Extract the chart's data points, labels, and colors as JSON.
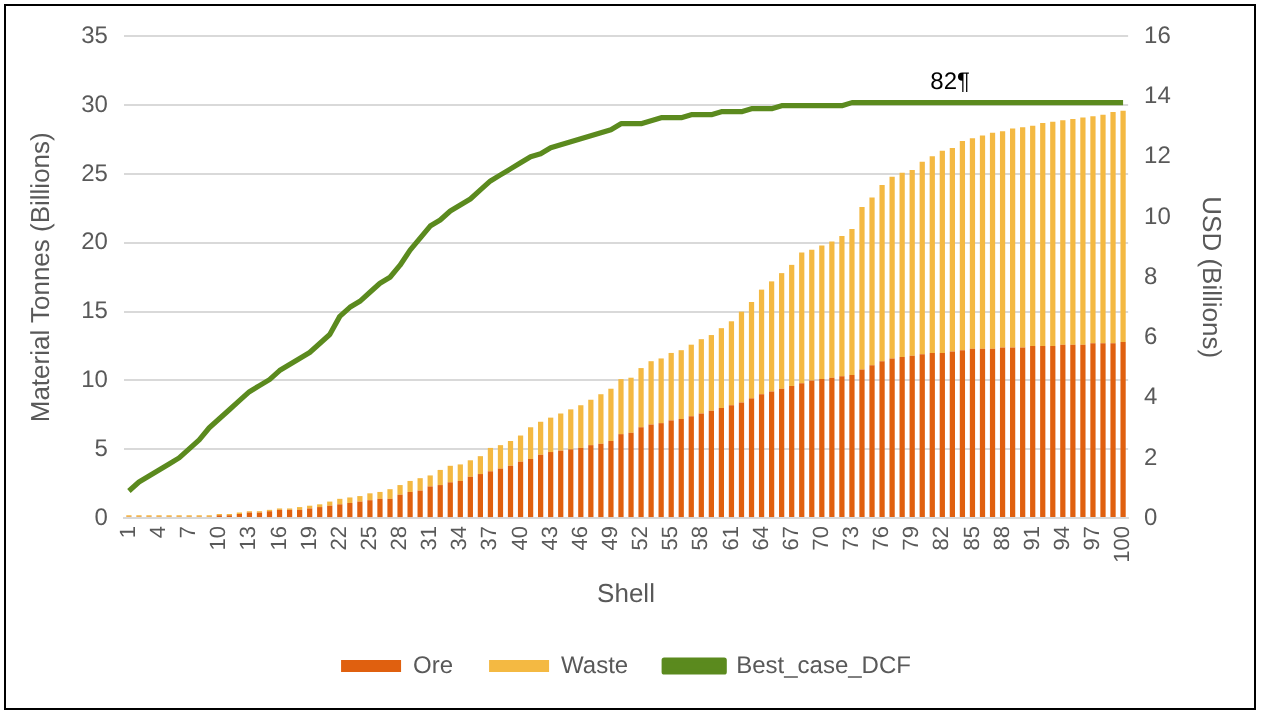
{
  "chart_data": {
    "type": "bar",
    "stacked": true,
    "xlabel": "Shell",
    "ylabel": "Material Tonnes (Billions)",
    "y2label": "USD (Billions)",
    "categories": [
      "1",
      null,
      null,
      "4",
      null,
      null,
      "7",
      null,
      null,
      "10",
      null,
      null,
      "13",
      null,
      null,
      "16",
      null,
      null,
      "19",
      null,
      null,
      "22",
      null,
      null,
      "25",
      null,
      null,
      "28",
      null,
      null,
      "31",
      null,
      null,
      "34",
      null,
      null,
      "37",
      null,
      null,
      "40",
      null,
      null,
      "43",
      null,
      null,
      "46",
      null,
      null,
      "49",
      null,
      null,
      "52",
      null,
      null,
      "55",
      null,
      null,
      "58",
      null,
      null,
      "61",
      null,
      null,
      "64",
      null,
      null,
      "67",
      null,
      null,
      "70",
      null,
      null,
      "73",
      null,
      null,
      "76",
      null,
      null,
      "79",
      null,
      null,
      "82",
      null,
      null,
      "85",
      null,
      null,
      "88",
      null,
      null,
      "91",
      null,
      null,
      "94",
      null,
      null,
      "97",
      null,
      null,
      "100"
    ],
    "series": [
      {
        "name": "Ore",
        "color": "#e0600f",
        "values": [
          0.1,
          0.1,
          0.1,
          0.1,
          0.1,
          0.1,
          0.1,
          0.1,
          0.1,
          0.2,
          0.2,
          0.3,
          0.4,
          0.4,
          0.5,
          0.6,
          0.6,
          0.6,
          0.7,
          0.8,
          0.9,
          1.0,
          1.1,
          1.2,
          1.3,
          1.4,
          1.4,
          1.7,
          1.9,
          2.0,
          2.3,
          2.4,
          2.6,
          2.7,
          3.0,
          3.2,
          3.4,
          3.6,
          3.8,
          4.1,
          4.3,
          4.6,
          4.8,
          4.9,
          5.0,
          5.1,
          5.3,
          5.4,
          5.6,
          6.1,
          6.2,
          6.6,
          6.8,
          6.9,
          7.1,
          7.2,
          7.4,
          7.6,
          7.8,
          8.0,
          8.2,
          8.4,
          8.7,
          9.0,
          9.2,
          9.4,
          9.6,
          9.8,
          10.0,
          10.1,
          10.2,
          10.3,
          10.4,
          10.8,
          11.1,
          11.4,
          11.6,
          11.7,
          11.8,
          11.9,
          12.0,
          12.0,
          12.1,
          12.2,
          12.3,
          12.3,
          12.3,
          12.4,
          12.4,
          12.4,
          12.5,
          12.5,
          12.5,
          12.6,
          12.6,
          12.6,
          12.7,
          12.7,
          12.7,
          12.8
        ]
      },
      {
        "name": "Waste",
        "color": "#f4b942",
        "values": [
          0.1,
          0.1,
          0.1,
          0.1,
          0.1,
          0.1,
          0.1,
          0.1,
          0.1,
          0.1,
          0.1,
          0.1,
          0.1,
          0.1,
          0.1,
          0.1,
          0.1,
          0.2,
          0.2,
          0.2,
          0.3,
          0.4,
          0.4,
          0.4,
          0.5,
          0.5,
          0.7,
          0.7,
          0.8,
          0.9,
          0.8,
          1.1,
          1.2,
          1.2,
          1.2,
          1.3,
          1.7,
          1.7,
          1.8,
          1.9,
          2.3,
          2.4,
          2.5,
          2.7,
          2.9,
          3.1,
          3.3,
          3.6,
          3.8,
          4.0,
          4.0,
          4.3,
          4.6,
          4.7,
          4.9,
          5.0,
          5.2,
          5.4,
          5.5,
          5.8,
          6.1,
          6.6,
          7.0,
          7.6,
          8.0,
          8.4,
          8.8,
          9.5,
          9.5,
          9.7,
          9.9,
          10.2,
          10.6,
          11.8,
          12.2,
          12.8,
          13.2,
          13.4,
          13.5,
          14.0,
          14.3,
          14.7,
          14.8,
          15.2,
          15.3,
          15.5,
          15.7,
          15.7,
          15.9,
          16.0,
          16.0,
          16.2,
          16.3,
          16.3,
          16.4,
          16.5,
          16.5,
          16.6,
          16.8,
          16.8
        ]
      },
      {
        "name": "Best_case_DCF",
        "type": "line",
        "axis": "y2",
        "color": "#5b8a1e",
        "values": [
          0.9,
          1.2,
          1.4,
          1.6,
          1.8,
          2.0,
          2.3,
          2.6,
          3.0,
          3.3,
          3.6,
          3.9,
          4.2,
          4.4,
          4.6,
          4.9,
          5.1,
          5.3,
          5.5,
          5.8,
          6.1,
          6.7,
          7.0,
          7.2,
          7.5,
          7.8,
          8.0,
          8.4,
          8.9,
          9.3,
          9.7,
          9.9,
          10.2,
          10.4,
          10.6,
          10.9,
          11.2,
          11.4,
          11.6,
          11.8,
          12.0,
          12.1,
          12.3,
          12.4,
          12.5,
          12.6,
          12.7,
          12.8,
          12.9,
          13.1,
          13.1,
          13.1,
          13.2,
          13.3,
          13.3,
          13.3,
          13.4,
          13.4,
          13.4,
          13.5,
          13.5,
          13.5,
          13.6,
          13.6,
          13.6,
          13.7,
          13.7,
          13.7,
          13.7,
          13.7,
          13.7,
          13.7,
          13.8,
          13.8,
          13.8,
          13.8,
          13.8,
          13.8,
          13.8,
          13.8,
          13.8,
          13.8,
          13.8,
          13.8,
          13.8,
          13.8,
          13.8,
          13.8,
          13.8,
          13.8,
          13.8,
          13.8,
          13.8,
          13.8,
          13.8,
          13.8,
          13.8,
          13.8,
          13.8,
          13.8
        ]
      }
    ],
    "ylim": [
      0,
      35
    ],
    "yticks": [
      0,
      5,
      10,
      15,
      20,
      25,
      30,
      35
    ],
    "y2lim": [
      0,
      16
    ],
    "y2ticks": [
      0,
      2,
      4,
      6,
      8,
      10,
      12,
      14,
      16
    ],
    "grid": "y",
    "legend": "bottom",
    "marker": "none",
    "line_style": "solid",
    "annotations": [
      {
        "text": "82¶",
        "x": "82",
        "y": 30.2
      }
    ]
  }
}
